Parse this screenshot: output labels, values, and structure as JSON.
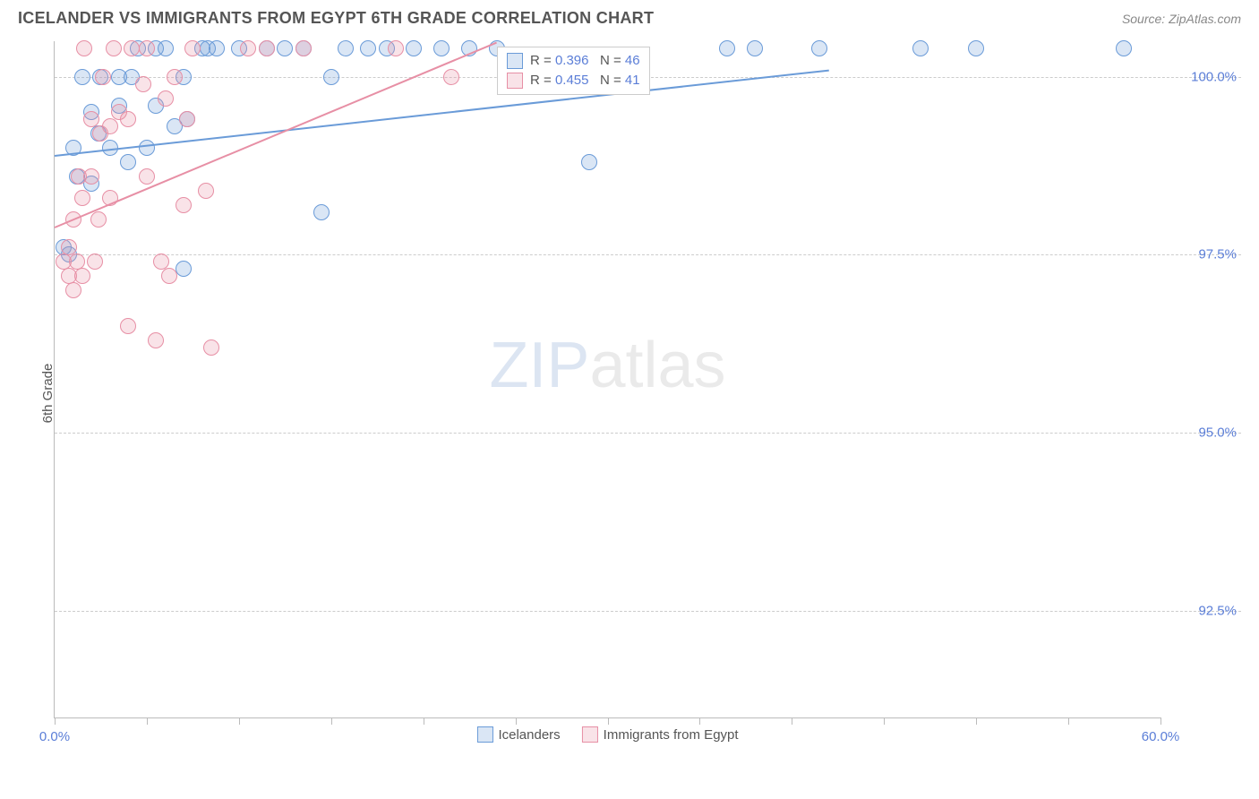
{
  "title": "ICELANDER VS IMMIGRANTS FROM EGYPT 6TH GRADE CORRELATION CHART",
  "source": "Source: ZipAtlas.com",
  "ylabel": "6th Grade",
  "watermark_bold": "ZIP",
  "watermark_rest": "atlas",
  "chart": {
    "type": "scatter-with-trend",
    "background_color": "#ffffff",
    "grid_color": "#cccccc",
    "grid_dash": "4,4",
    "axis_color": "#bbbbbb",
    "tick_label_color": "#5b7ed7",
    "label_color": "#555555",
    "title_color": "#555555",
    "title_fontsize": 18,
    "label_fontsize": 15,
    "tick_fontsize": 15,
    "xlim": [
      0,
      60
    ],
    "ylim": [
      91,
      100.5
    ],
    "xticks": [
      0,
      5,
      10,
      15,
      20,
      25,
      30,
      35,
      40,
      45,
      50,
      55,
      60
    ],
    "xtick_labels": {
      "0": "0.0%",
      "60": "60.0%"
    },
    "yticks": [
      92.5,
      95.0,
      97.5,
      100.0
    ],
    "ytick_labels": [
      "92.5%",
      "95.0%",
      "97.5%",
      "100.0%"
    ],
    "marker_radius": 9,
    "marker_fill_opacity": 0.25,
    "marker_border_width": 1.5,
    "line_width": 2,
    "series": [
      {
        "name": "Icelanders",
        "color": "#6a9bd8",
        "fill_color": "rgba(106,155,216,0.25)",
        "border_color": "#6a9bd8",
        "r_label": "R =",
        "r_value": "0.396",
        "n_label": "N =",
        "n_value": "46",
        "trend": {
          "x1": 0,
          "y1": 98.9,
          "x2": 42,
          "y2": 100.1
        },
        "points": [
          [
            0.5,
            97.6
          ],
          [
            0.8,
            97.5
          ],
          [
            1.0,
            99.0
          ],
          [
            1.2,
            98.6
          ],
          [
            1.5,
            100.0
          ],
          [
            2.0,
            98.5
          ],
          [
            2.0,
            99.5
          ],
          [
            2.4,
            99.2
          ],
          [
            2.5,
            100.0
          ],
          [
            3.0,
            99.0
          ],
          [
            3.5,
            99.6
          ],
          [
            3.5,
            100.0
          ],
          [
            4.0,
            98.8
          ],
          [
            4.2,
            100.0
          ],
          [
            4.5,
            100.4
          ],
          [
            5.0,
            99.0
          ],
          [
            5.5,
            99.6
          ],
          [
            5.5,
            100.4
          ],
          [
            6.0,
            100.4
          ],
          [
            6.5,
            99.3
          ],
          [
            7.0,
            100.0
          ],
          [
            7.0,
            97.3
          ],
          [
            7.2,
            99.4
          ],
          [
            8.0,
            100.4
          ],
          [
            8.3,
            100.4
          ],
          [
            8.8,
            100.4
          ],
          [
            10.0,
            100.4
          ],
          [
            11.5,
            100.4
          ],
          [
            12.5,
            100.4
          ],
          [
            13.5,
            100.4
          ],
          [
            15.0,
            100.0
          ],
          [
            15.8,
            100.4
          ],
          [
            17.0,
            100.4
          ],
          [
            18.0,
            100.4
          ],
          [
            19.5,
            100.4
          ],
          [
            21.0,
            100.4
          ],
          [
            22.5,
            100.4
          ],
          [
            24.0,
            100.4
          ],
          [
            14.5,
            98.1
          ],
          [
            29.0,
            98.8
          ],
          [
            36.5,
            100.4
          ],
          [
            38.0,
            100.4
          ],
          [
            41.5,
            100.4
          ],
          [
            47.0,
            100.4
          ],
          [
            50.0,
            100.4
          ],
          [
            58.0,
            100.4
          ]
        ]
      },
      {
        "name": "Immigrants from Egypt",
        "color": "#e78fa5",
        "fill_color": "rgba(231,143,165,0.25)",
        "border_color": "#e78fa5",
        "r_label": "R =",
        "r_value": "0.455",
        "n_label": "N =",
        "n_value": "41",
        "trend": {
          "x1": 0,
          "y1": 97.9,
          "x2": 24,
          "y2": 100.5
        },
        "points": [
          [
            0.5,
            97.4
          ],
          [
            0.8,
            97.2
          ],
          [
            0.8,
            97.6
          ],
          [
            1.0,
            97.0
          ],
          [
            1.0,
            98.0
          ],
          [
            1.2,
            97.4
          ],
          [
            1.3,
            98.6
          ],
          [
            1.5,
            97.2
          ],
          [
            1.5,
            98.3
          ],
          [
            1.6,
            100.4
          ],
          [
            2.0,
            98.6
          ],
          [
            2.0,
            99.4
          ],
          [
            2.2,
            97.4
          ],
          [
            2.4,
            98.0
          ],
          [
            2.5,
            99.2
          ],
          [
            2.6,
            100.0
          ],
          [
            3.0,
            99.3
          ],
          [
            3.0,
            98.3
          ],
          [
            3.2,
            100.4
          ],
          [
            3.5,
            99.5
          ],
          [
            4.0,
            96.5
          ],
          [
            4.0,
            99.4
          ],
          [
            4.2,
            100.4
          ],
          [
            4.8,
            99.9
          ],
          [
            5.0,
            98.6
          ],
          [
            5.0,
            100.4
          ],
          [
            5.5,
            96.3
          ],
          [
            5.8,
            97.4
          ],
          [
            6.0,
            99.7
          ],
          [
            6.2,
            97.2
          ],
          [
            6.5,
            100.0
          ],
          [
            7.0,
            98.2
          ],
          [
            7.2,
            99.4
          ],
          [
            7.5,
            100.4
          ],
          [
            8.2,
            98.4
          ],
          [
            8.5,
            96.2
          ],
          [
            10.5,
            100.4
          ],
          [
            11.5,
            100.4
          ],
          [
            13.5,
            100.4
          ],
          [
            18.5,
            100.4
          ],
          [
            21.5,
            100.0
          ]
        ]
      }
    ]
  }
}
